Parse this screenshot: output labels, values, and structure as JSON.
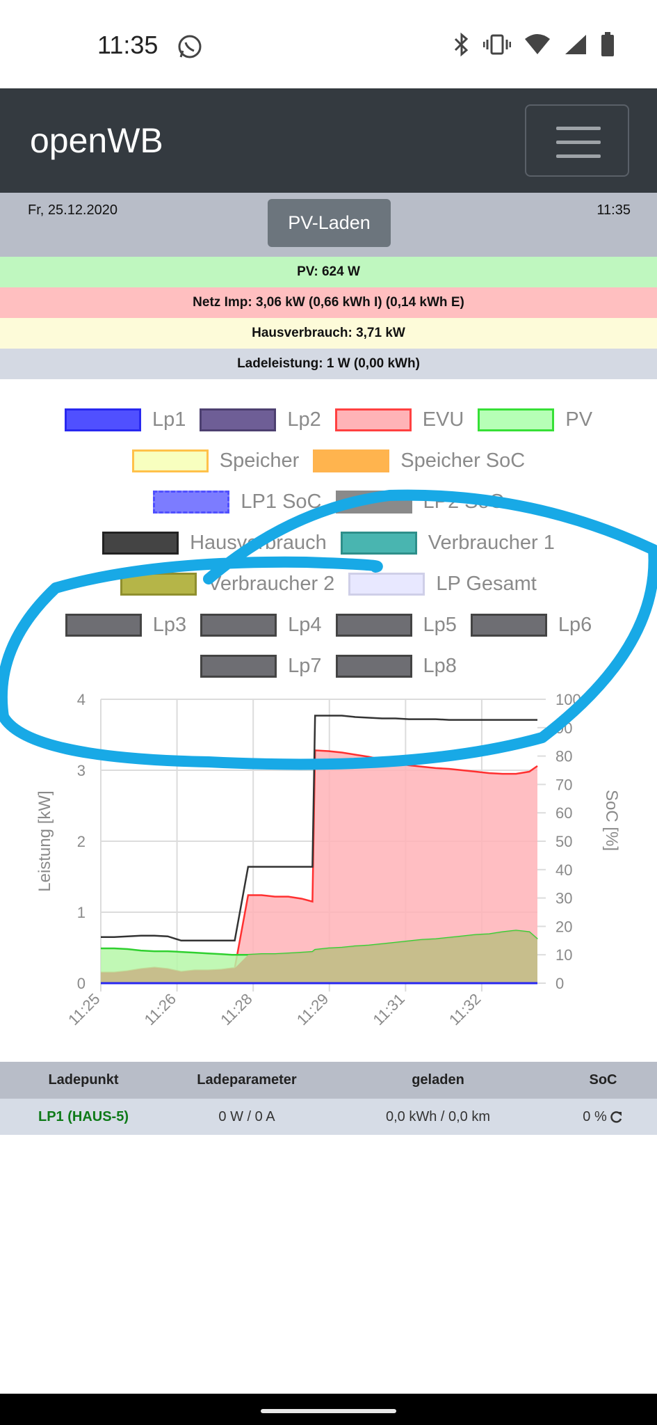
{
  "status": {
    "time": "11:35"
  },
  "navbar": {
    "brand": "openWB"
  },
  "info": {
    "date": "Fr, 25.12.2020",
    "time": "11:35",
    "mode_button": "PV-Laden"
  },
  "rows": {
    "pv": "PV: 624 W",
    "netz": "Netz Imp: 3,06 kW (0,66 kWh I) (0,14 kWh E)",
    "haus": "Hausverbrauch: 3,71 kW",
    "lade": "Ladeleistung: 1 W (0,00 kWh)"
  },
  "colors": {
    "pv_row": "#bff7bf",
    "netz_row": "#ffbfc0",
    "haus_row": "#fdfbd9",
    "lade_row": "#d4d9e3",
    "evu": "#ffb3b7",
    "pv": "#80ff80",
    "haus": "#333333",
    "annotation": "#18a9e6"
  },
  "legend": [
    [
      {
        "label": "Lp1",
        "fill": "#5050ff",
        "border": "#2828f0"
      },
      {
        "label": "Lp2",
        "fill": "#6e5e96",
        "border": "#4d4070"
      },
      {
        "label": "EVU",
        "fill": "#ffb3b7",
        "border": "#ff4040"
      },
      {
        "label": "PV",
        "fill": "#b6ffb6",
        "border": "#36e036"
      }
    ],
    [
      {
        "label": "Speicher",
        "fill": "#f8ffbf",
        "border": "#ffc14a"
      },
      {
        "label": "Speicher SoC",
        "fill": "#ffb44e",
        "border": "#ffb44e",
        "dashed": true
      }
    ],
    [
      {
        "label": "LP1 SoC",
        "fill": "#7c7cff",
        "border": "#5050ff",
        "dashed": true
      },
      {
        "label": "LP2 SoC",
        "fill": "#8a8a8a",
        "border": "#8a8a8a",
        "dashed": true
      }
    ],
    [
      {
        "label": "Hausverbrauch",
        "fill": "#444444",
        "border": "#222222"
      },
      {
        "label": "Verbraucher 1",
        "fill": "#49b5b0",
        "border": "#2e8f8a"
      }
    ],
    [
      {
        "label": "Verbraucher 2",
        "fill": "#b5b548",
        "border": "#8f8f2e"
      },
      {
        "label": "LP Gesamt",
        "fill": "#e8e8ff",
        "border": "#cfcfe8"
      }
    ],
    [
      {
        "label": "Lp3",
        "fill": "#6e6e73",
        "border": "#444"
      },
      {
        "label": "Lp4",
        "fill": "#6e6e73",
        "border": "#444"
      },
      {
        "label": "Lp5",
        "fill": "#6e6e73",
        "border": "#444"
      },
      {
        "label": "Lp6",
        "fill": "#6e6e73",
        "border": "#444"
      }
    ],
    [
      {
        "label": "Lp7",
        "fill": "#6e6e73",
        "border": "#444"
      },
      {
        "label": "Lp8",
        "fill": "#6e6e73",
        "border": "#444"
      }
    ]
  ],
  "chart_data": {
    "type": "area",
    "ylabel": "Leistung [kW]",
    "y2label": "SoC [%]",
    "ylim": [
      0,
      4
    ],
    "y2lim": [
      0,
      100
    ],
    "yticks": [
      0,
      1,
      2,
      3,
      4
    ],
    "y2ticks": [
      0,
      10,
      20,
      30,
      40,
      50,
      60,
      70,
      80,
      90,
      100
    ],
    "xticks": [
      "11:25",
      "11:26",
      "11:28",
      "11:29",
      "11:31",
      "11:32"
    ],
    "grid": true,
    "x_minutes": [
      0,
      0.5,
      1.0,
      1.5,
      2.0,
      2.5,
      3.0,
      3.5,
      4.0,
      4.5,
      4.9,
      5.0,
      5.5,
      6.0,
      6.5,
      7.0,
      7.5,
      7.9,
      8.0,
      8.5,
      9.0,
      9.5,
      10.0,
      10.5,
      11.0,
      11.5,
      12.0,
      12.5,
      13.0,
      13.5,
      14.0,
      14.5,
      15.0,
      15.5,
      16.0,
      16.3
    ],
    "series": [
      {
        "name": "Hausverbrauch",
        "values": [
          0.65,
          0.65,
          0.66,
          0.67,
          0.67,
          0.66,
          0.6,
          0.6,
          0.6,
          0.6,
          0.6,
          0.6,
          1.64,
          1.64,
          1.64,
          1.64,
          1.64,
          1.64,
          3.77,
          3.77,
          3.77,
          3.75,
          3.74,
          3.73,
          3.73,
          3.72,
          3.72,
          3.72,
          3.71,
          3.71,
          3.71,
          3.71,
          3.71,
          3.71,
          3.71,
          3.71
        ]
      },
      {
        "name": "EVU",
        "values": [
          0.15,
          0.15,
          0.17,
          0.2,
          0.22,
          0.2,
          0.16,
          0.18,
          0.18,
          0.19,
          0.21,
          0.21,
          1.24,
          1.24,
          1.22,
          1.22,
          1.19,
          1.15,
          3.28,
          3.27,
          3.25,
          3.22,
          3.19,
          3.15,
          3.1,
          3.07,
          3.05,
          3.03,
          3.02,
          3.0,
          2.98,
          2.96,
          2.95,
          2.95,
          2.98,
          3.06
        ]
      },
      {
        "name": "PV",
        "values": [
          0.49,
          0.49,
          0.48,
          0.46,
          0.45,
          0.45,
          0.44,
          0.43,
          0.42,
          0.41,
          0.4,
          0.4,
          0.4,
          0.41,
          0.41,
          0.42,
          0.43,
          0.44,
          0.47,
          0.49,
          0.5,
          0.52,
          0.53,
          0.55,
          0.57,
          0.59,
          0.61,
          0.62,
          0.64,
          0.66,
          0.68,
          0.69,
          0.72,
          0.74,
          0.72,
          0.62
        ]
      },
      {
        "name": "Lp1",
        "values": [
          0,
          0,
          0,
          0,
          0,
          0,
          0,
          0,
          0,
          0,
          0,
          0,
          0,
          0,
          0,
          0,
          0,
          0,
          0,
          0,
          0,
          0,
          0,
          0,
          0,
          0,
          0,
          0,
          0,
          0,
          0,
          0,
          0,
          0,
          0,
          0
        ]
      }
    ]
  },
  "table": {
    "headers": [
      "Ladepunkt",
      "Ladeparameter",
      "geladen",
      "SoC"
    ],
    "rows": [
      {
        "name": "LP1 (HAUS-5)",
        "param": "0 W / 0 A",
        "loaded": "0,0 kWh / 0,0 km",
        "soc": "0 %"
      }
    ]
  }
}
